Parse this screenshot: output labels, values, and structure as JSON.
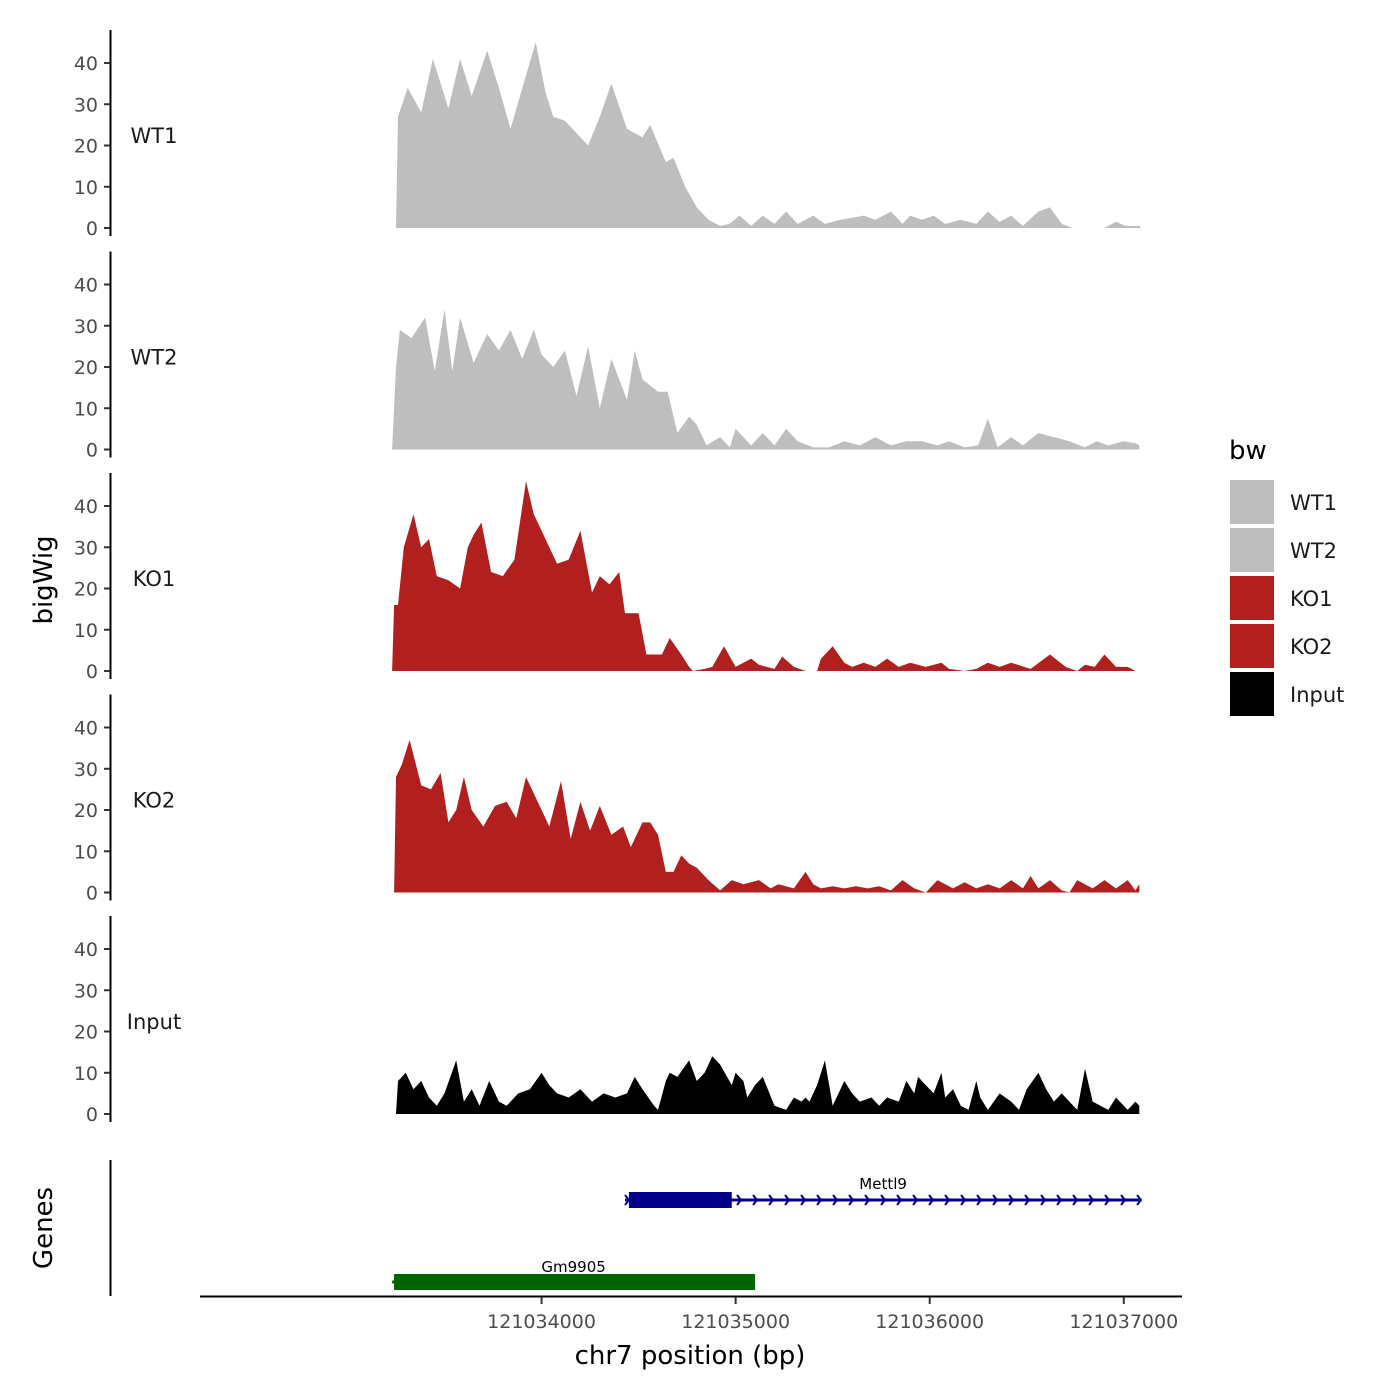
{
  "chart_data": {
    "type": "area",
    "xlabel": "chr7 position (bp)",
    "ylabel": "bigWig",
    "genes_track_label": "Genes",
    "xlim": [
      121032240,
      121037300
    ],
    "x_ticks": [
      121034000,
      121035000,
      121036000,
      121037000
    ],
    "x_tick_labels": [
      "121034000",
      "121035000",
      "121036000",
      "121037000"
    ],
    "ylim": [
      0,
      48
    ],
    "y_ticks": [
      0,
      10,
      20,
      30,
      40
    ],
    "y_tick_labels": [
      "0",
      "10",
      "20",
      "30",
      "40"
    ],
    "legend": {
      "title": "bw",
      "entries": [
        {
          "label": "WT1",
          "color": "#bebebe"
        },
        {
          "label": "WT2",
          "color": "#bebebe"
        },
        {
          "label": "KO1",
          "color": "#b21f1f"
        },
        {
          "label": "KO2",
          "color": "#b21f1f"
        },
        {
          "label": "Input",
          "color": "#000000"
        }
      ],
      "position": "right"
    },
    "series": [
      {
        "name": "WT1",
        "color": "#bebebe",
        "x": [
          121033250,
          121033260,
          121033310,
          121033380,
          121033440,
          121033520,
          121033580,
          121033640,
          121033720,
          121033780,
          121033840,
          121033920,
          121033970,
          121034020,
          121034060,
          121034120,
          121034180,
          121034240,
          121034300,
          121034360,
          121034440,
          121034520,
          121034560,
          121034640,
          121034680,
          121034740,
          121034800,
          121034860,
          121034920,
          121034970,
          121035020,
          121035080,
          121035140,
          121035200,
          121035260,
          121035320,
          121035400,
          121035460,
          121035540,
          121035600,
          121035660,
          121035720,
          121035800,
          121035860,
          121035900,
          121035960,
          121036020,
          121036080,
          121036160,
          121036240,
          121036300,
          121036360,
          121036420,
          121036480,
          121036560,
          121036620,
          121036680,
          121036740,
          121036800,
          121036830,
          121036900,
          121036960,
          121037010,
          121037060,
          121037080,
          121037090
        ],
        "values": [
          0,
          27,
          34,
          28,
          41,
          29,
          41,
          32,
          43,
          34,
          24,
          37,
          45,
          33,
          27,
          26,
          23,
          20,
          27,
          35,
          24,
          22,
          25,
          16,
          17,
          10,
          5,
          2,
          0.5,
          1,
          3,
          0.5,
          3,
          1,
          4,
          1,
          3,
          1,
          2,
          2.5,
          3,
          2,
          4,
          1,
          3,
          2,
          3,
          1,
          2,
          1,
          4,
          1.5,
          3,
          0.5,
          4,
          5,
          1,
          0,
          0,
          0,
          0,
          1.5,
          0.5,
          0.5,
          0.5,
          0
        ]
      },
      {
        "name": "WT2",
        "color": "#bebebe",
        "x": [
          121033230,
          121033250,
          121033270,
          121033330,
          121033400,
          121033450,
          121033500,
          121033540,
          121033580,
          121033650,
          121033720,
          121033780,
          121033840,
          121033900,
          121033960,
          121034000,
          121034060,
          121034120,
          121034180,
          121034240,
          121034300,
          121034360,
          121034440,
          121034480,
          121034520,
          121034600,
          121034650,
          121034700,
          121034760,
          121034800,
          121034850,
          121034920,
          121034970,
          121035000,
          121035080,
          121035140,
          121035200,
          121035260,
          121035320,
          121035400,
          121035480,
          121035560,
          121035640,
          121035720,
          121035800,
          121035880,
          121035960,
          121036040,
          121036100,
          121036180,
          121036250,
          121036300,
          121036350,
          121036420,
          121036480,
          121036560,
          121036640,
          121036720,
          121036800,
          121036860,
          121036920,
          121037000,
          121037060,
          121037080
        ],
        "values": [
          0,
          20,
          29,
          27,
          32,
          19,
          34,
          19,
          32,
          21,
          28,
          24,
          29,
          22,
          29,
          23,
          20,
          24,
          13,
          25,
          10,
          22,
          12,
          24,
          17,
          14,
          14,
          4,
          8,
          6,
          1,
          3,
          0.5,
          5,
          1,
          4,
          1,
          5,
          2,
          0.5,
          0.5,
          2,
          1,
          3,
          1,
          2,
          2,
          1,
          2,
          0.5,
          1,
          7.5,
          0.5,
          3,
          1,
          4,
          3,
          2,
          0.5,
          2,
          1,
          2,
          1.5,
          1
        ]
      },
      {
        "name": "KO1",
        "color": "#b21f1f",
        "x": [
          121033230,
          121033240,
          121033260,
          121033290,
          121033340,
          121033380,
          121033420,
          121033460,
          121033520,
          121033580,
          121033620,
          121033650,
          121033690,
          121033740,
          121033800,
          121033860,
          121033920,
          121033960,
          121034000,
          121034040,
          121034080,
          121034140,
          121034200,
          121034260,
          121034300,
          121034350,
          121034400,
          121034430,
          121034460,
          121034500,
          121034540,
          121034570,
          121034620,
          121034660,
          121034720,
          121034760,
          121034780,
          121034840,
          121034880,
          121034940,
          121035000,
          121035080,
          121035120,
          121035160,
          121035200,
          121035240,
          121035300,
          121035360,
          121035400,
          121035420,
          121035440,
          121035500,
          121035560,
          121035600,
          121035660,
          121035720,
          121035780,
          121035840,
          121035900,
          121035980,
          121036060,
          121036100,
          121036180,
          121036240,
          121036300,
          121036360,
          121036420,
          121036520,
          121036620,
          121036700,
          121036760,
          121036800,
          121036850,
          121036900,
          121036960,
          121037020,
          121037060,
          121037080,
          121037090
        ],
        "values": [
          0,
          16,
          16,
          30,
          38,
          30,
          32,
          23,
          22,
          20,
          30,
          33,
          36,
          24,
          23,
          27,
          46,
          38,
          34,
          30,
          26,
          27,
          34,
          19,
          23,
          21,
          24,
          14,
          14,
          14,
          4,
          4,
          4,
          8,
          4,
          1,
          0,
          0.5,
          1,
          6,
          1,
          3,
          1.5,
          1,
          0.5,
          3.5,
          1,
          0,
          0,
          0,
          3,
          6,
          2,
          1,
          2,
          1,
          3,
          1,
          2,
          1,
          2,
          0.5,
          0,
          0.5,
          2,
          1,
          2,
          0.5,
          4,
          1,
          0,
          1.5,
          1,
          4,
          1,
          1,
          0,
          0,
          0
        ]
      },
      {
        "name": "KO2",
        "color": "#b21f1f",
        "x": [
          121033240,
          121033250,
          121033280,
          121033320,
          121033380,
          121033430,
          121033480,
          121033520,
          121033560,
          121033600,
          121033640,
          121033700,
          121033760,
          121033820,
          121033870,
          121033920,
          121033980,
          121034040,
          121034100,
          121034150,
          121034200,
          121034250,
          121034300,
          121034360,
          121034420,
          121034460,
          121034520,
          121034560,
          121034600,
          121034640,
          121034680,
          121034720,
          121034760,
          121034800,
          121034860,
          121034920,
          121034980,
          121035040,
          121035120,
          121035180,
          121035220,
          121035300,
          121035360,
          121035400,
          121035440,
          121035500,
          121035560,
          121035620,
          121035680,
          121035740,
          121035800,
          121035860,
          121035920,
          121035980,
          121036040,
          121036120,
          121036180,
          121036240,
          121036300,
          121036360,
          121036420,
          121036480,
          121036520,
          121036560,
          121036620,
          121036680,
          121036720,
          121036760,
          121036840,
          121036900,
          121036960,
          121037020,
          121037060,
          121037080
        ],
        "values": [
          0,
          28,
          31,
          37,
          26,
          25,
          29,
          17,
          20,
          28,
          20,
          16,
          21,
          22,
          18,
          28,
          22,
          16,
          27,
          13,
          22,
          15,
          21,
          14,
          16,
          11,
          17,
          17,
          14,
          5,
          5,
          9,
          7,
          6,
          3,
          0.5,
          3,
          2,
          3,
          1,
          2,
          1,
          5,
          2,
          1,
          1.5,
          1,
          1.5,
          1,
          1.5,
          0.5,
          3,
          1,
          0,
          3,
          1,
          2.5,
          1,
          2,
          1,
          3,
          1,
          4,
          1,
          3,
          0.5,
          0,
          3,
          1,
          3,
          1,
          3,
          0.5,
          2
        ]
      },
      {
        "name": "Input",
        "color": "#000000",
        "x": [
          121033250,
          121033260,
          121033300,
          121033340,
          121033380,
          121033420,
          121033460,
          121033500,
          121033560,
          121033600,
          121033640,
          121033680,
          121033730,
          121033780,
          121033820,
          121033880,
          121033940,
          121034000,
          121034040,
          121034080,
          121034140,
          121034200,
          121034260,
          121034320,
          121034380,
          121034440,
          121034480,
          121034520,
          121034580,
          121034600,
          121034640,
          121034660,
          121034700,
          121034760,
          121034800,
          121034840,
          121034880,
          121034920,
          121034980,
          121035000,
          121035040,
          121035060,
          121035100,
          121035140,
          121035200,
          121035260,
          121035300,
          121035340,
          121035360,
          121035380,
          121035420,
          121035460,
          121035500,
          121035560,
          121035600,
          121035640,
          121035700,
          121035740,
          121035780,
          121035840,
          121035880,
          121035920,
          121035940,
          121035980,
          121036020,
          121036060,
          121036080,
          121036120,
          121036160,
          121036200,
          121036240,
          121036260,
          121036300,
          121036360,
          121036420,
          121036460,
          121036500,
          121036560,
          121036600,
          121036640,
          121036680,
          121036720,
          121036760,
          121036800,
          121036840,
          121036880,
          121036920,
          121036960,
          121037000,
          121037020,
          121037060,
          121037080
        ],
        "values": [
          0,
          8,
          10,
          6,
          8,
          4,
          2,
          5,
          13,
          3,
          6,
          2,
          8,
          3,
          2,
          5,
          6,
          10,
          7,
          5,
          4,
          6,
          3,
          5,
          4,
          5,
          9,
          6,
          2,
          1,
          8,
          10,
          9,
          13,
          8,
          10,
          14,
          12,
          7,
          10,
          8,
          4,
          7,
          9,
          2,
          1,
          4,
          3,
          4,
          3,
          7,
          13,
          2,
          8,
          5,
          3,
          4,
          2,
          4,
          3,
          8,
          5,
          9,
          7,
          5,
          10,
          4,
          6,
          2,
          1,
          8,
          4,
          1,
          5,
          3,
          1,
          6,
          10,
          6,
          3,
          5,
          3,
          1,
          11,
          3,
          2,
          1,
          4,
          2,
          1,
          3,
          2
        ]
      }
    ],
    "genes": [
      {
        "name": "Mettl9",
        "color": "#00008b",
        "strand": "+",
        "tx_start": 121034430,
        "tx_end": 121037090,
        "exon_start": 121034450,
        "exon_end": 121034980
      },
      {
        "name": "Gm9905",
        "color": "#006400",
        "strand": "-",
        "tx_start": 121033230,
        "tx_end": 121035100,
        "exon_start": 121033240,
        "exon_end": 121035100
      }
    ]
  }
}
